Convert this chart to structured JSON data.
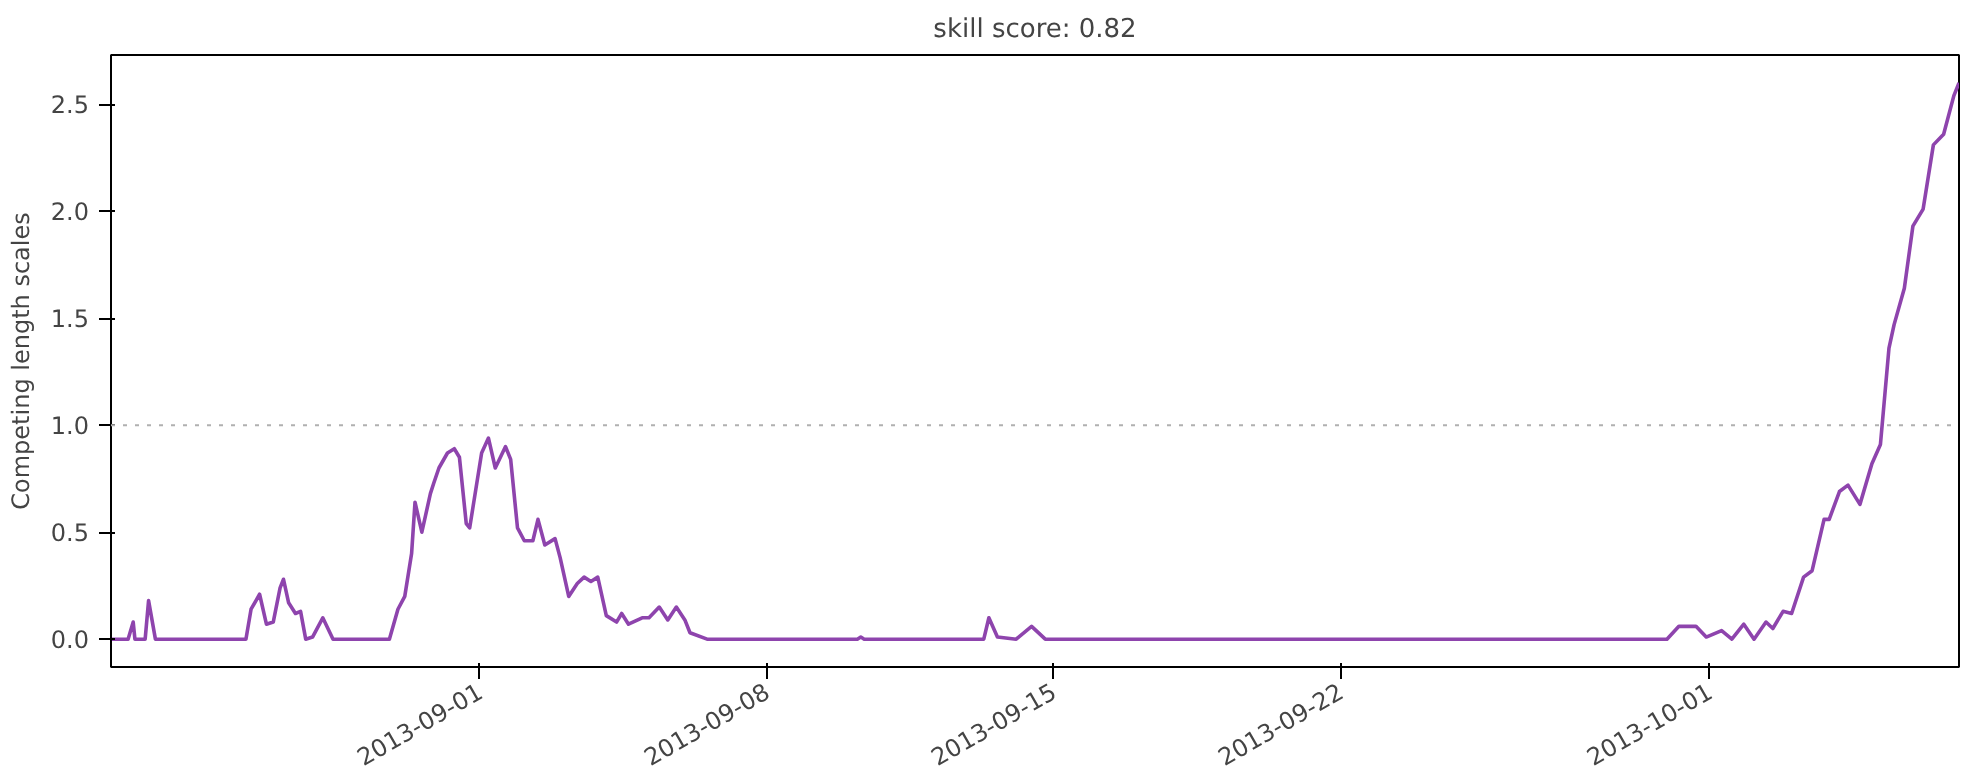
{
  "chart_data": {
    "type": "line",
    "title": "skill score: 0.82",
    "ylabel": "Competing length scales",
    "x": [
      "2013-08-23T00:00",
      "2013-08-23T10:00",
      "2013-08-23T13:00",
      "2013-08-23T14:00",
      "2013-08-23T20:00",
      "2013-08-23T22:00",
      "2013-08-24T02:00",
      "2013-08-26T07:00",
      "2013-08-26T10:00",
      "2013-08-26T15:00",
      "2013-08-26T19:00",
      "2013-08-26T23:00",
      "2013-08-27T03:00",
      "2013-08-27T05:00",
      "2013-08-27T08:00",
      "2013-08-27T12:00",
      "2013-08-27T15:00",
      "2013-08-27T18:00",
      "2013-08-27T22:00",
      "2013-08-28T04:00",
      "2013-08-28T10:00",
      "2013-08-29T19:00",
      "2013-08-30T00:00",
      "2013-08-30T04:00",
      "2013-08-30T08:00",
      "2013-08-30T10:00",
      "2013-08-30T14:00",
      "2013-08-30T19:00",
      "2013-08-30T21:00",
      "2013-08-31T00:00",
      "2013-08-31T05:00",
      "2013-08-31T09:00",
      "2013-08-31T12:00",
      "2013-08-31T16:00",
      "2013-08-31T18:00",
      "2013-09-01T01:00",
      "2013-09-01T05:00",
      "2013-09-01T09:00",
      "2013-09-01T15:00",
      "2013-09-01T18:00",
      "2013-09-01T22:00",
      "2013-09-02T02:00",
      "2013-09-02T07:00",
      "2013-09-02T10:00",
      "2013-09-02T14:00",
      "2013-09-02T20:00",
      "2013-09-02T23:00",
      "2013-09-03T04:00",
      "2013-09-03T09:00",
      "2013-09-03T13:00",
      "2013-09-03T17:00",
      "2013-09-03T21:00",
      "2013-09-04T02:00",
      "2013-09-04T08:00",
      "2013-09-04T11:00",
      "2013-09-04T15:00",
      "2013-09-04T23:00",
      "2013-09-05T03:00",
      "2013-09-05T09:00",
      "2013-09-05T14:00",
      "2013-09-05T19:00",
      "2013-09-06T00:00",
      "2013-09-06T03:00",
      "2013-09-06T13:00",
      "2013-09-10T05:00",
      "2013-09-10T07:00",
      "2013-09-10T09:00",
      "2013-09-13T07:00",
      "2013-09-13T10:00",
      "2013-09-13T15:00",
      "2013-09-14T02:00",
      "2013-09-14T11:00",
      "2013-09-14T19:00",
      "2013-09-29T23:00",
      "2013-09-30T06:00",
      "2013-09-30T11:00",
      "2013-09-30T16:00",
      "2013-09-30T22:00",
      "2013-10-01T07:00",
      "2013-10-01T13:00",
      "2013-10-01T20:00",
      "2013-10-02T02:00",
      "2013-10-02T09:00",
      "2013-10-02T13:00",
      "2013-10-02T19:00",
      "2013-10-03T00:00",
      "2013-10-03T07:00",
      "2013-10-03T12:00",
      "2013-10-03T19:00",
      "2013-10-03T22:00",
      "2013-10-04T04:00",
      "2013-10-04T09:00",
      "2013-10-04T16:00",
      "2013-10-04T23:00",
      "2013-10-05T04:00",
      "2013-10-05T09:00",
      "2013-10-05T12:00",
      "2013-10-05T18:00",
      "2013-10-05T23:00",
      "2013-10-06T05:00",
      "2013-10-06T11:00",
      "2013-10-06T17:00",
      "2013-10-06T23:00",
      "2013-10-07T02:00"
    ],
    "series": [
      {
        "color": "#8e44ad",
        "values": [
          0,
          0,
          0.08,
          0,
          0,
          0.18,
          0,
          0,
          0.14,
          0.21,
          0.07,
          0.08,
          0.24,
          0.28,
          0.17,
          0.12,
          0.13,
          0,
          0.01,
          0.1,
          0,
          0,
          0.14,
          0.2,
          0.4,
          0.64,
          0.5,
          0.68,
          0.73,
          0.8,
          0.87,
          0.89,
          0.85,
          0.54,
          0.52,
          0.87,
          0.94,
          0.8,
          0.9,
          0.84,
          0.52,
          0.46,
          0.46,
          0.56,
          0.44,
          0.47,
          0.38,
          0.2,
          0.26,
          0.29,
          0.27,
          0.29,
          0.11,
          0.08,
          0.12,
          0.07,
          0.1,
          0.1,
          0.15,
          0.09,
          0.15,
          0.09,
          0.03,
          0,
          0,
          0.01,
          0,
          0,
          0.1,
          0.01,
          0,
          0.06,
          0,
          0,
          0.06,
          0.06,
          0.06,
          0.01,
          0.04,
          0,
          0.07,
          0,
          0.08,
          0.05,
          0.13,
          0.12,
          0.29,
          0.32,
          0.56,
          0.56,
          0.69,
          0.72,
          0.63,
          0.82,
          0.91,
          1.36,
          1.47,
          1.64,
          1.93,
          2.01,
          2.31,
          2.36,
          2.54,
          2.6
        ]
      }
    ],
    "xlim": [
      "2013-08-23T00:00",
      "2013-10-07T02:00"
    ],
    "xticks": [
      "2013-09-01",
      "2013-09-08",
      "2013-09-15",
      "2013-09-22",
      "2013-10-01"
    ],
    "ylim": [
      -0.13,
      2.73
    ],
    "yticks": [
      {
        "value": 0,
        "label": "0.0"
      },
      {
        "value": 0.5,
        "label": "0.5"
      },
      {
        "value": 1,
        "label": "1.0"
      },
      {
        "value": 1.5,
        "label": "1.5"
      },
      {
        "value": 2,
        "label": "2.0"
      },
      {
        "value": 2.5,
        "label": "2.5"
      }
    ],
    "ref_lines": [
      {
        "axis": "y",
        "value": 1,
        "color": "#b0b0b0",
        "line_style": "dotted"
      }
    ],
    "grid": false,
    "line_style": "solid",
    "marker": "none"
  }
}
